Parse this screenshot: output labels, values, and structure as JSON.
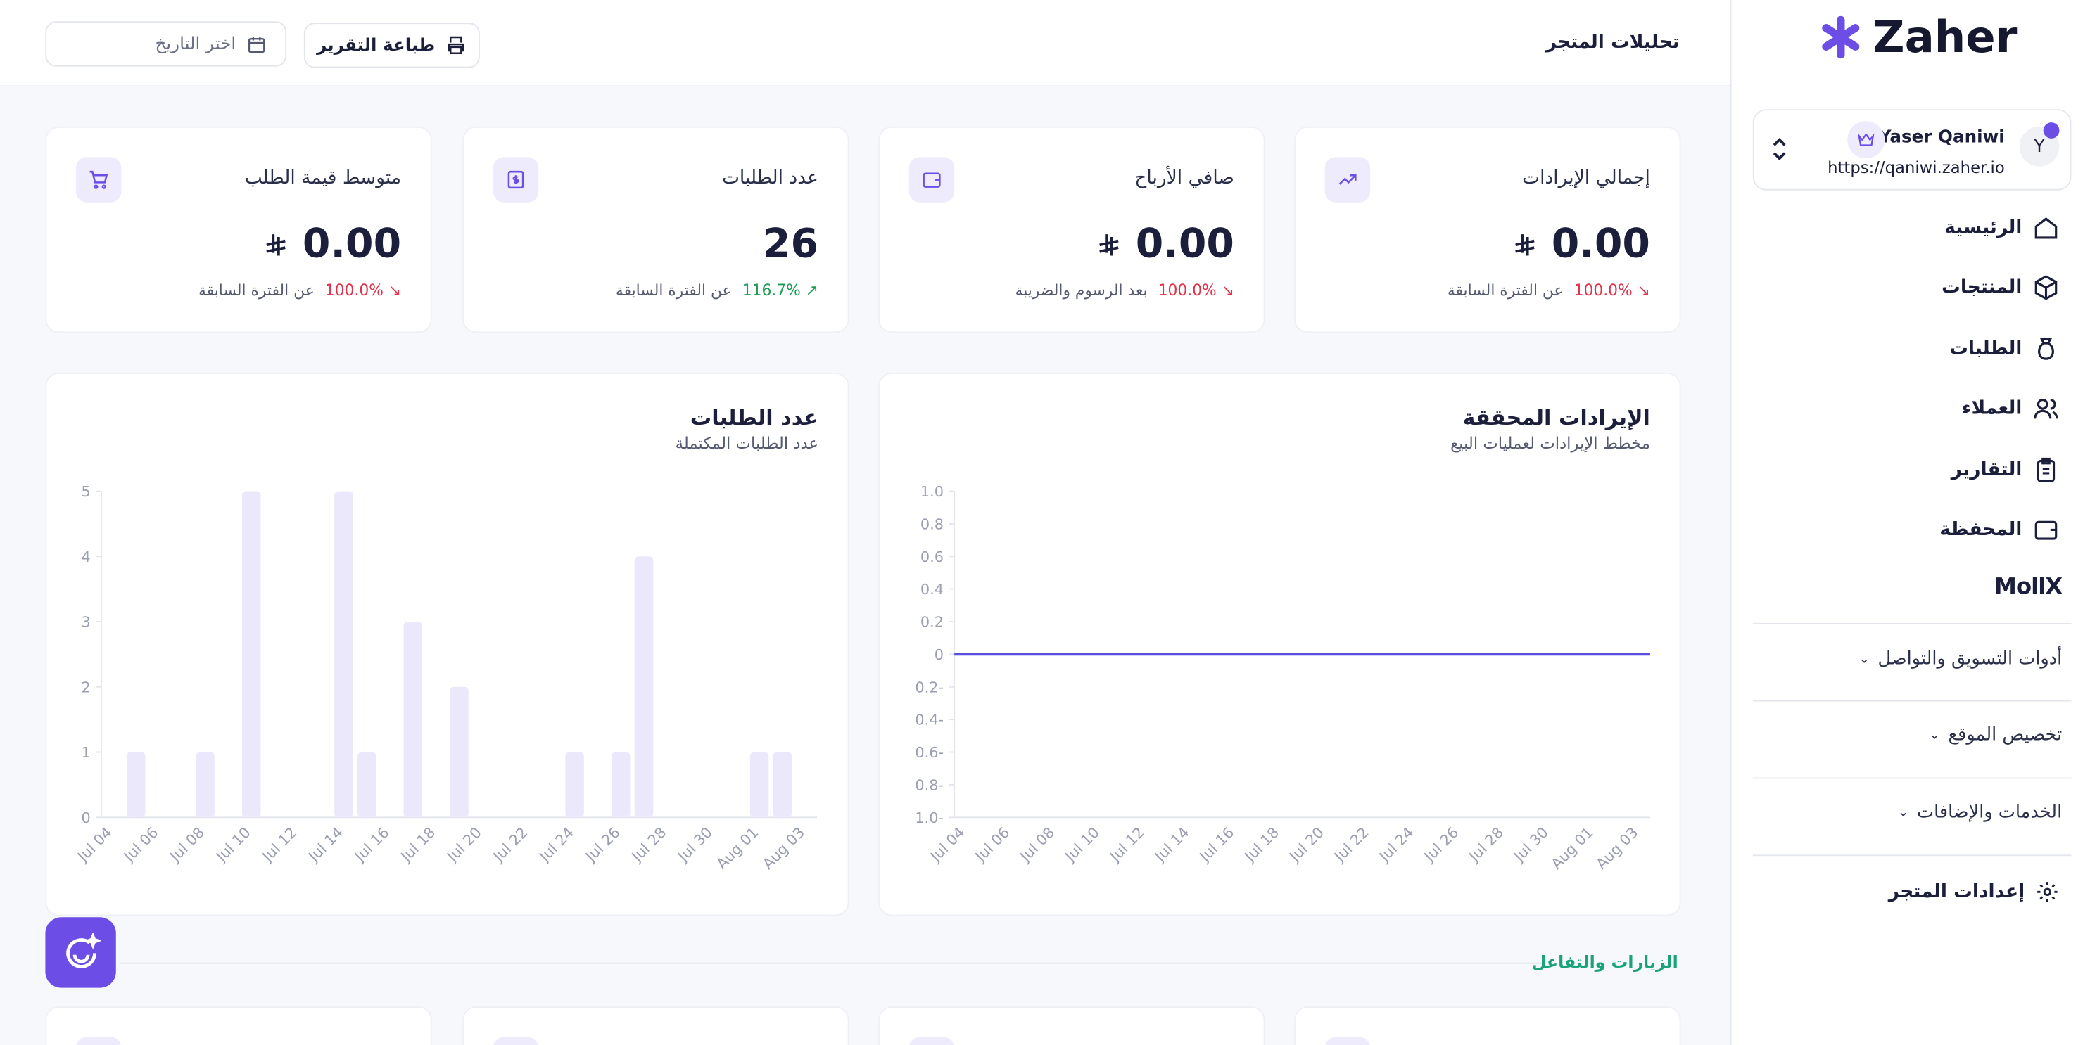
{
  "sidebar": {
    "brand": "Zaher",
    "user": {
      "initial": "Y",
      "name": "Yaser Qaniwi",
      "url": "https://qaniwi.zaher.io"
    },
    "nav": [
      "الرئيسية",
      "المنتجات",
      "الطلبات",
      "العملاء",
      "التقارير",
      "المحفظة"
    ],
    "partner": "MollX",
    "sections": [
      "أدوات التسويق والتواصل",
      "تخصيص الموقع",
      "الخدمات والإضافات"
    ],
    "settings": "إعدادات المتجر"
  },
  "header": {
    "title": "تحليلات المتجر",
    "print": "طباعة التقرير",
    "date_placeholder": "اختر التاريخ"
  },
  "stats": [
    {
      "label": "إجمالي الإيرادات",
      "value": "0.00",
      "change": "100.0%",
      "note": "عن الفترة السابقة"
    },
    {
      "label": "صافي الأرباح",
      "value": "0.00",
      "change": "100.0%",
      "note": "بعد الرسوم والضريبة"
    },
    {
      "label": "عدد الطلبات",
      "value": 26,
      "change": "116.7%",
      "note": "عن الفترة السابقة"
    },
    {
      "label": "متوسط قيمة الطلب",
      "value": "0.00",
      "change": "100.0%",
      "note": "عن الفترة السابقة"
    }
  ],
  "revenue_chart": {
    "type": "line",
    "title": "الإيرادات المحققة",
    "subtitle": "مخطط الإيرادات لعمليات البيع",
    "color": "#5b4de0",
    "categories": [
      "Jul 04",
      null,
      "Jul 06",
      null,
      "Jul 08",
      null,
      "Jul 10",
      null,
      "Jul 12",
      null,
      "Jul 14",
      null,
      "Jul 16",
      null,
      "Jul 18",
      null,
      "Jul 20",
      null,
      "Jul 22",
      null,
      "Jul 24",
      null,
      "Jul 26",
      null,
      "Jul 28",
      null,
      "Jul 30",
      null,
      "Aug 01",
      null,
      "Aug 03"
    ],
    "values": [
      0,
      0,
      0,
      0,
      0,
      0,
      0,
      0,
      0,
      0,
      0,
      0,
      0,
      0,
      0,
      0,
      0,
      0,
      0,
      0,
      0,
      0,
      0,
      0,
      0,
      0,
      0,
      0,
      0,
      0,
      0
    ],
    "ylim": [
      -1,
      1
    ],
    "yticks": [
      {
        "value": -1,
        "label": "1.0-"
      },
      {
        "value": -0.8,
        "label": "0.8-"
      },
      {
        "value": -0.6,
        "label": "0.6-"
      },
      {
        "value": -0.4,
        "label": "0.4-"
      },
      {
        "value": -0.2,
        "label": "0.2-"
      },
      0,
      0.2,
      0.4,
      0.6,
      0.8,
      {
        "value": 1,
        "label": "1.0"
      }
    ]
  },
  "orders_chart": {
    "type": "bar",
    "title": "عدد الطلبات",
    "subtitle": "عدد الطلبات المكتملة",
    "color": "#ebe8fb",
    "categories": [
      "Jul 04",
      null,
      "Jul 06",
      null,
      "Jul 08",
      null,
      "Jul 10",
      null,
      "Jul 12",
      null,
      "Jul 14",
      null,
      "Jul 16",
      null,
      "Jul 18",
      null,
      "Jul 20",
      null,
      "Jul 22",
      null,
      "Jul 24",
      null,
      "Jul 26",
      null,
      "Jul 28",
      null,
      "Jul 30",
      null,
      "Aug 01",
      null,
      "Aug 03"
    ],
    "values": [
      0,
      1,
      0,
      0,
      1,
      0,
      5,
      0,
      0,
      0,
      5,
      1,
      0,
      3,
      0,
      2,
      0,
      0,
      0,
      0,
      1,
      0,
      1,
      4,
      0,
      0,
      0,
      0,
      1,
      1,
      0
    ],
    "ylim": [
      0,
      5
    ],
    "yticks": [
      0,
      1,
      2,
      3,
      4,
      5
    ]
  },
  "visits_section": {
    "title": "الزيارات والتفاعل"
  }
}
